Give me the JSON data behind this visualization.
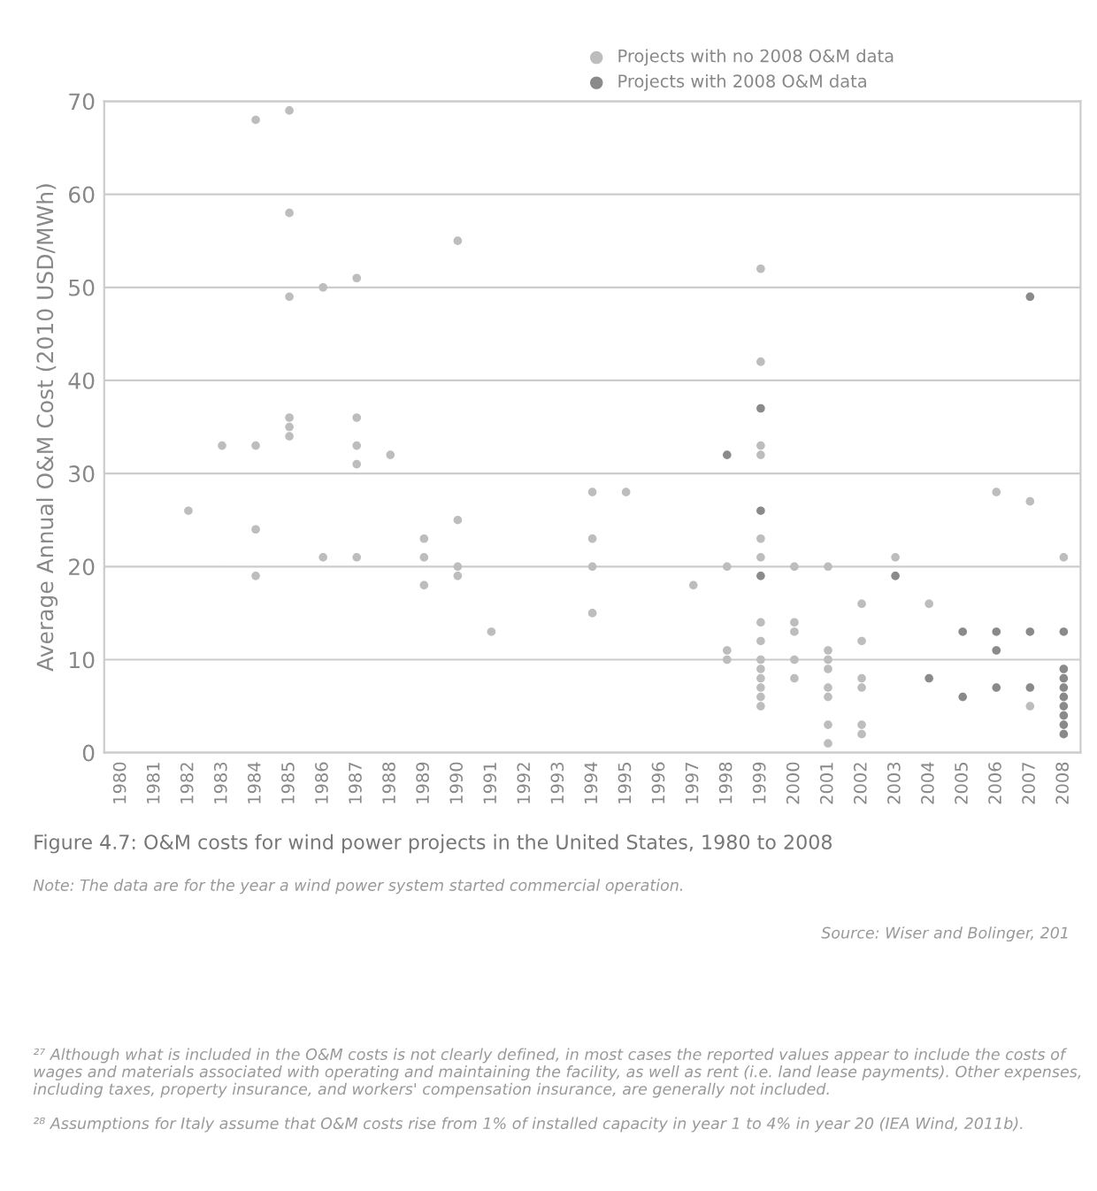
{
  "chart_data": {
    "type": "scatter",
    "title": "Figure 4.7: O&M costs for wind power projects in the United States, 1980 to 2008",
    "ylabel": "Average Annual O&M Cost (2010 USD/MWh)",
    "xlim": [
      1979.5,
      2008.5
    ],
    "xticks": [
      1980,
      1981,
      1982,
      1983,
      1984,
      1985,
      1986,
      1987,
      1988,
      1989,
      1990,
      1991,
      1992,
      1993,
      1994,
      1995,
      1996,
      1997,
      1998,
      1999,
      2000,
      2001,
      2002,
      2003,
      2004,
      2005,
      2006,
      2007,
      2008
    ],
    "ylim": [
      0,
      70
    ],
    "yticks": [
      0,
      10,
      20,
      30,
      40,
      50,
      60,
      70
    ],
    "grid": "y",
    "legend": "top right",
    "marker": "circle",
    "series": [
      {
        "name": "Projects with no 2008 O&M data",
        "color": "#bdbdbd",
        "x": [
          1982,
          1983,
          1984,
          1984,
          1984,
          1984,
          1985,
          1985,
          1985,
          1985,
          1985,
          1985,
          1986,
          1986,
          1987,
          1987,
          1987,
          1987,
          1987,
          1988,
          1989,
          1989,
          1989,
          1990,
          1990,
          1990,
          1990,
          1991,
          1994,
          1994,
          1994,
          1994,
          1995,
          1997,
          1998,
          1998,
          1998,
          1999,
          1999,
          1999,
          1999,
          1999,
          1999,
          1999,
          1999,
          1999,
          1999,
          1999,
          1999,
          1999,
          1999,
          2000,
          2000,
          2000,
          2000,
          2000,
          2001,
          2001,
          2001,
          2001,
          2001,
          2001,
          2001,
          2001,
          2002,
          2002,
          2002,
          2002,
          2002,
          2002,
          2003,
          2004,
          2006,
          2007,
          2007,
          2008
        ],
        "values": [
          26,
          33,
          68,
          33,
          24,
          19,
          69,
          58,
          49,
          36,
          35,
          34,
          50,
          21,
          51,
          36,
          33,
          31,
          21,
          32,
          23,
          21,
          18,
          55,
          25,
          20,
          19,
          13,
          28,
          23,
          20,
          15,
          28,
          18,
          20,
          11,
          10,
          52,
          42,
          33,
          32,
          23,
          21,
          14,
          12,
          10,
          9,
          8,
          7,
          6,
          5,
          20,
          14,
          13,
          10,
          8,
          20,
          11,
          10,
          9,
          7,
          6,
          3,
          1,
          16,
          12,
          8,
          7,
          3,
          2,
          21,
          16,
          28,
          27,
          5,
          21
        ]
      },
      {
        "name": "Projects with 2008 O&M data",
        "color": "#8a8a8a",
        "x": [
          1998,
          1999,
          1999,
          1999,
          2003,
          2004,
          2005,
          2005,
          2006,
          2006,
          2006,
          2007,
          2007,
          2007,
          2008,
          2008,
          2008,
          2008,
          2008,
          2008,
          2008,
          2008,
          2008
        ],
        "values": [
          32,
          37,
          26,
          19,
          19,
          8,
          13,
          6,
          13,
          11,
          7,
          49,
          13,
          7,
          13,
          9,
          8,
          7,
          6,
          5,
          4,
          3,
          2
        ]
      }
    ],
    "annotations": [
      "Note: The data are for the year a wind power system started commercial operation.",
      "Source: Wiser and Bolinger, 201",
      "²⁷ Although what is included in the O&M costs is not clearly defined, in most cases the reported values appear to include the costs of wages and materials associated with operating and maintaining the facility, as well as rent (i.e. land lease payments). Other expenses, including taxes, property insurance, and workers' compensation insurance, are generally not included.",
      "²⁸ Assumptions for Italy assume that O&M costs rise from 1% of installed capacity in year 1 to 4% in year 20 (IEA Wind, 2011b)."
    ]
  }
}
